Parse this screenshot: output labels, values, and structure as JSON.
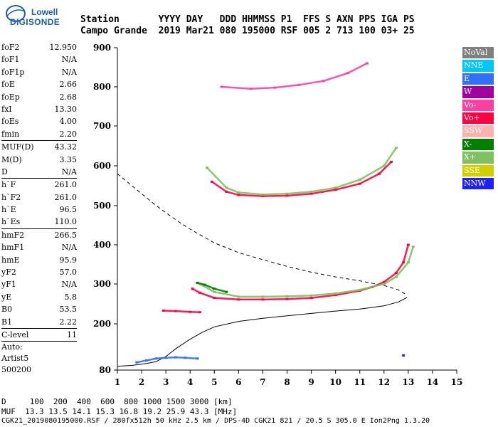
{
  "logo": {
    "line1": "Lowell",
    "line2": "DIGISONDE"
  },
  "header": {
    "row1": "Station       YYYY DAY   DDD HHMMSS P1  FFS S AXN PPS IGA PS",
    "row2": "Campo Grande  2019 Mar21 080 195000 RSF 005 2 713 100 03+ 25"
  },
  "params": [
    {
      "k": "foF2",
      "v": "12.950"
    },
    {
      "k": "foF1",
      "v": "N/A"
    },
    {
      "k": "foF1p",
      "v": "N/A"
    },
    {
      "k": "foE",
      "v": "2.66"
    },
    {
      "k": "foEp",
      "v": "2.68"
    },
    {
      "k": "fxI",
      "v": "13.30"
    },
    {
      "k": "foEs",
      "v": "4.00"
    },
    {
      "k": "fmin",
      "v": "2.20"
    },
    {
      "sep": true
    },
    {
      "k": "MUF(D)",
      "v": "43.32"
    },
    {
      "k": "M(D)",
      "v": "3.35"
    },
    {
      "k": "D",
      "v": "N/A"
    },
    {
      "sep": true
    },
    {
      "k": "h`F",
      "v": "261.0"
    },
    {
      "k": "h`F2",
      "v": "261.0"
    },
    {
      "k": "h`E",
      "v": "96.5"
    },
    {
      "k": "h`Es",
      "v": "110.0"
    },
    {
      "sep": true
    },
    {
      "k": "hmF2",
      "v": "266.5"
    },
    {
      "k": "hmF1",
      "v": "N/A"
    },
    {
      "k": "hmE",
      "v": "95.9"
    },
    {
      "k": "yF2",
      "v": "57.0"
    },
    {
      "k": "yF1",
      "v": "N/A"
    },
    {
      "k": "yE",
      "v": "5.8"
    },
    {
      "k": "B0",
      "v": "53.5"
    },
    {
      "k": "B1",
      "v": "2.22"
    },
    {
      "sep": true
    },
    {
      "k": "C-level",
      "v": "11"
    },
    {
      "sep": true
    }
  ],
  "autoscale": {
    "line1": "Auto:",
    "line2": "Artist5",
    "line3": "500200"
  },
  "legend": [
    {
      "label": "NoVal",
      "color": "#808080"
    },
    {
      "label": "NNE",
      "color": "#00c8ff"
    },
    {
      "label": "E",
      "color": "#3070ff"
    },
    {
      "label": "W",
      "color": "#a000a0"
    },
    {
      "label": "Vo-",
      "color": "#ff40a0"
    },
    {
      "label": "Vo+",
      "color": "#ff0040"
    },
    {
      "label": "SSW",
      "color": "#ffb0b0"
    },
    {
      "label": "X-",
      "color": "#008000"
    },
    {
      "label": "X+",
      "color": "#80c060"
    },
    {
      "label": "SSE",
      "color": "#d0d000"
    },
    {
      "label": "NNW",
      "color": "#2020ff"
    }
  ],
  "footer": {
    "row1": "D     100  200  400  600  800 1000 1500 3000 [km]",
    "row2": "MUF  13.3 13.5 14.1 15.3 16.8 19.2 25.9 43.3 [MHz]",
    "row3": "CGK21_2019080195000.RSF / 280fx512h 50 kHz 2.5 km / DPS-4D CGK21 821 / 20.5 S 305.0 E Ion2Png 1.3.20"
  },
  "chart_data": {
    "type": "scatter",
    "xlim": [
      1,
      15
    ],
    "ylim": [
      80,
      900
    ],
    "xticks": [
      1,
      2,
      3,
      4,
      5,
      6,
      7,
      8,
      9,
      10,
      11,
      12,
      13,
      14,
      15
    ],
    "yticks": [
      80,
      200,
      300,
      400,
      500,
      600,
      700,
      800,
      900
    ],
    "series": [
      {
        "name": "Vo+",
        "color": "#ff0040",
        "x": [
          4.1,
          4.4,
          5,
          6,
          7,
          8,
          9,
          10,
          11,
          11.5,
          12,
          12.5,
          12.8,
          13.0
        ],
        "y": [
          288,
          278,
          265,
          261,
          261,
          262,
          265,
          272,
          283,
          292,
          305,
          328,
          355,
          400
        ]
      },
      {
        "name": "X+",
        "color": "#80c060",
        "x": [
          4.4,
          5,
          6,
          7,
          8,
          9,
          10,
          11,
          12,
          12.5,
          13,
          13.2
        ],
        "y": [
          300,
          280,
          268,
          268,
          269,
          271,
          276,
          285,
          300,
          318,
          355,
          395
        ]
      },
      {
        "name": "X-",
        "color": "#008000",
        "x": [
          4.3,
          4.6,
          5,
          5.5
        ],
        "y": [
          303,
          298,
          288,
          280
        ]
      },
      {
        "name": "Vo+ 2F",
        "color": "#ff0040",
        "x": [
          4.9,
          5.5,
          6,
          7,
          8,
          9,
          10,
          11,
          11.8,
          12.3
        ],
        "y": [
          560,
          535,
          527,
          524,
          525,
          530,
          540,
          555,
          580,
          610
        ]
      },
      {
        "name": "X+ 2F",
        "color": "#80c060",
        "x": [
          4.7,
          5.5,
          6,
          7,
          8,
          9,
          10,
          11,
          12,
          12.5
        ],
        "y": [
          595,
          545,
          533,
          528,
          530,
          535,
          545,
          565,
          600,
          645
        ]
      },
      {
        "name": "Vo- 3F",
        "color": "#ff40a0",
        "x": [
          5.3,
          6.5,
          7.5,
          8.5,
          9.5,
          10.5,
          11.3
        ],
        "y": [
          800,
          795,
          798,
          805,
          815,
          835,
          860
        ]
      },
      {
        "name": "Es",
        "color": "#ff0040",
        "x": [
          2.9,
          3.4,
          4.0,
          4.4
        ],
        "y": [
          233,
          232,
          230,
          229
        ]
      },
      {
        "name": "E",
        "color": "#3070ff",
        "x": [
          1.8,
          2.2,
          2.6,
          3.0,
          3.4,
          3.8,
          4.3
        ],
        "y": [
          100,
          105,
          110,
          112,
          113,
          112,
          110
        ]
      },
      {
        "name": "NNW",
        "color": "#2020ff",
        "x": [
          12.8
        ],
        "y": [
          118
        ]
      }
    ],
    "profile": {
      "x": [
        1.0,
        1.6,
        2.2,
        2.6,
        3.0,
        3.4,
        4.0,
        4.5,
        5.0,
        6.0,
        7.0,
        8.0,
        9.0,
        10.0,
        11.0,
        12.0,
        12.6,
        12.95
      ],
      "y": [
        90,
        92,
        97,
        102,
        115,
        135,
        160,
        178,
        192,
        206,
        214,
        220,
        226,
        232,
        237,
        245,
        255,
        266
      ]
    },
    "muf_curve": {
      "x": [
        1.0,
        1.5,
        2.0,
        2.5,
        3.0,
        3.5,
        4.0,
        5.0,
        6.0,
        7.0,
        8.0,
        9.0,
        10.0,
        11.0,
        12.0,
        12.6,
        12.95
      ],
      "y": [
        580,
        555,
        530,
        505,
        482,
        460,
        440,
        405,
        380,
        362,
        345,
        330,
        318,
        308,
        296,
        285,
        272
      ]
    }
  }
}
